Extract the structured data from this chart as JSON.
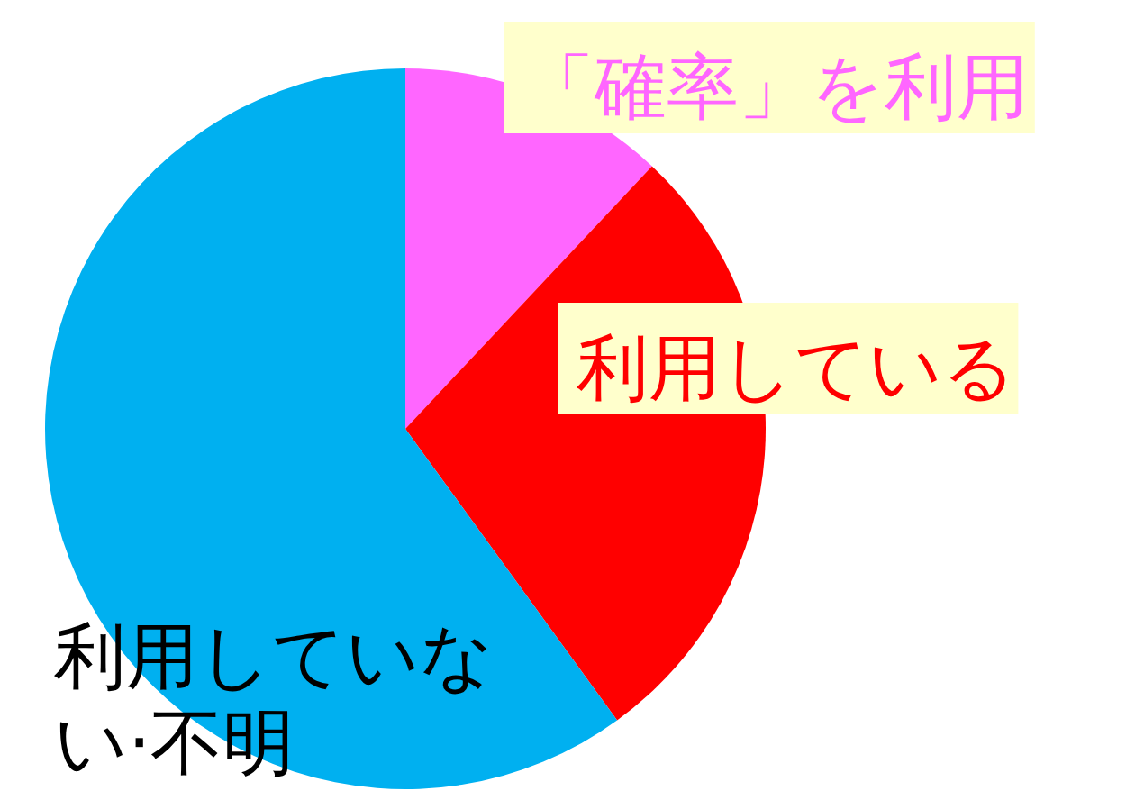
{
  "chart_data": {
    "type": "pie",
    "categories": [
      "「確率」を利用",
      "利用している",
      "利用していない·不明"
    ],
    "values": [
      12,
      28,
      60
    ],
    "colors": [
      "#ff66ff",
      "#ff0000",
      "#00b0f0"
    ]
  }
}
